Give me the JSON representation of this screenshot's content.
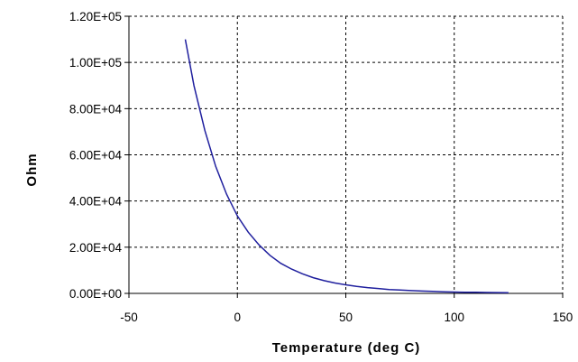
{
  "chart_data": {
    "type": "line",
    "title": "",
    "xlabel": "Temperature (deg C)",
    "ylabel": "Ohm",
    "xlim": [
      -50,
      150
    ],
    "ylim": [
      0,
      120000
    ],
    "x_ticks": [
      -50,
      0,
      50,
      100,
      150
    ],
    "x_tick_labels": [
      "-50",
      "0",
      "50",
      "100",
      "150"
    ],
    "y_ticks": [
      0,
      20000,
      40000,
      60000,
      80000,
      100000,
      120000
    ],
    "y_tick_labels": [
      "0.00E+00",
      "2.00E+04",
      "4.00E+04",
      "6.00E+04",
      "8.00E+04",
      "1.00E+05",
      "1.20E+05"
    ],
    "grid": true,
    "legend": "none",
    "series": [
      {
        "color": "#1f1f9e",
        "x": [
          -24,
          -20,
          -15,
          -10,
          -5,
          0,
          5,
          10,
          15,
          20,
          25,
          30,
          35,
          40,
          45,
          50,
          55,
          60,
          65,
          70,
          75,
          80,
          85,
          90,
          95,
          100,
          105,
          110,
          115,
          120,
          125
        ],
        "y": [
          110000,
          90000,
          70500,
          55000,
          43000,
          33500,
          26500,
          21000,
          16500,
          13000,
          10500,
          8500,
          6800,
          5500,
          4500,
          3700,
          3000,
          2500,
          2100,
          1700,
          1450,
          1200,
          1000,
          850,
          700,
          600,
          520,
          450,
          390,
          340,
          300
        ]
      }
    ]
  }
}
